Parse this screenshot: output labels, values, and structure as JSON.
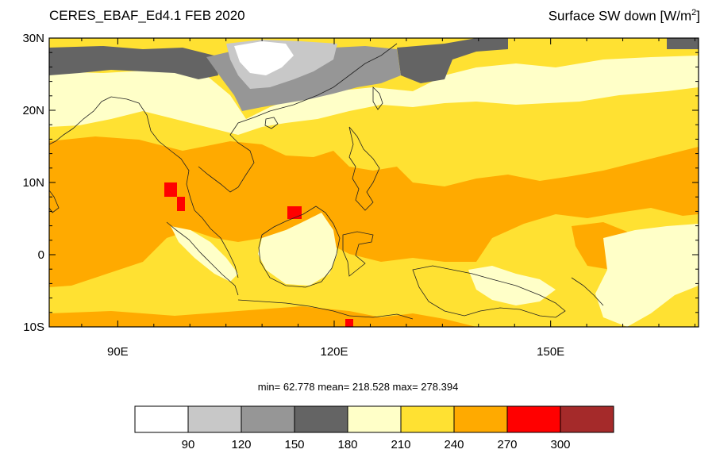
{
  "title_left": "CERES_EBAF_Ed4.1 FEB 2020",
  "title_right_main": "Surface SW down [W/m",
  "title_right_sup": "2",
  "title_right_end": "]",
  "stats_text": "min=  62.778  mean= 218.528  max= 278.394",
  "lat_ticks": [
    {
      "value": 30,
      "label": "30N"
    },
    {
      "value": 20,
      "label": "20N"
    },
    {
      "value": 10,
      "label": "10N"
    },
    {
      "value": 0,
      "label": "0"
    },
    {
      "value": -10,
      "label": "10S"
    }
  ],
  "lon_ticks": [
    {
      "value": 90,
      "label": "90E"
    },
    {
      "value": 120,
      "label": "120E"
    },
    {
      "value": 150,
      "label": "150E"
    }
  ],
  "lon_range": [
    80.5,
    170.5
  ],
  "lat_range": [
    -10,
    30
  ],
  "colorbar": {
    "colors": [
      "#ffffff",
      "#c8c8c8",
      "#969696",
      "#646464",
      "#ffffc8",
      "#ffe132",
      "#ffaa00",
      "#ff0000",
      "#a52a2a"
    ],
    "labels": [
      "90",
      "120",
      "150",
      "180",
      "210",
      "240",
      "270",
      "300"
    ]
  }
}
